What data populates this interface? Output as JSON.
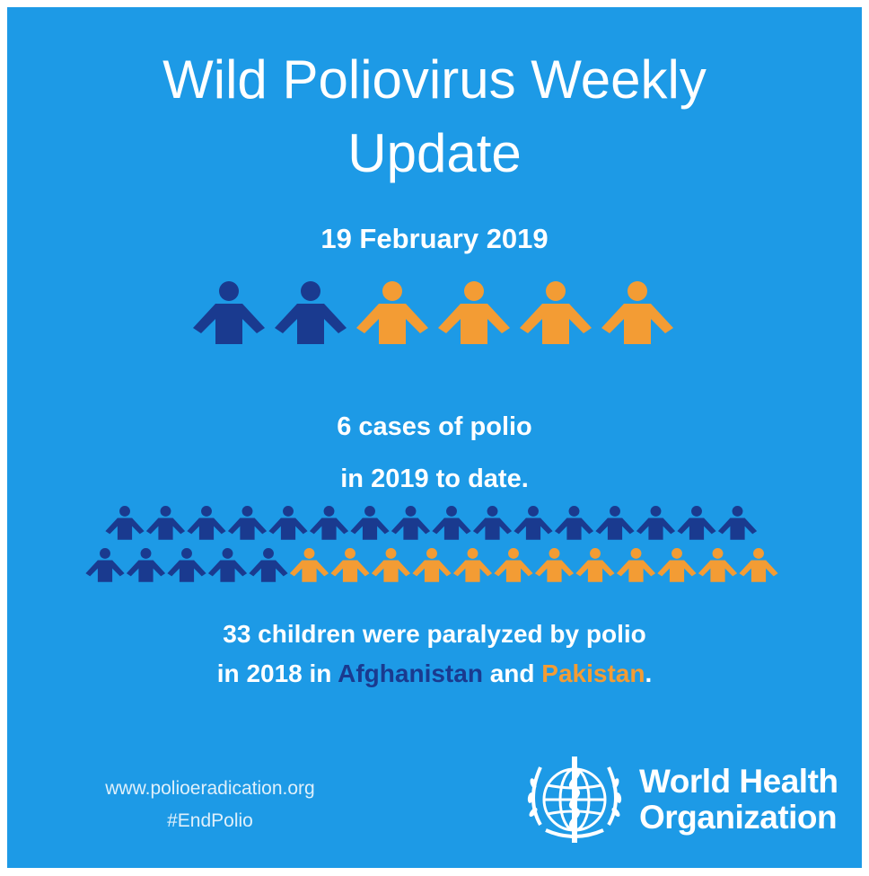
{
  "title": {
    "line1": "Wild Poliovirus Weekly",
    "line2": "Update"
  },
  "date": "19 February 2019",
  "cases": {
    "line1": "6 cases of polio",
    "line2": "in 2019 to date.",
    "afghanistan_count": 2,
    "pakistan_count": 4
  },
  "children_2018": {
    "pre": "33 children were paralyzed by polio",
    "line2_pre": "in 2018 in ",
    "afghanistan": "Afghanistan",
    "and": " and ",
    "pakistan": "Pakistan",
    "end": ".",
    "afghanistan_count": 21,
    "pakistan_count": 12
  },
  "colors": {
    "background": "#1d9ae6",
    "afghanistan": "#1a3a8f",
    "pakistan": "#f39c34"
  },
  "footer": {
    "url": "www.polioeradication.org",
    "hashtag": "#EndPolio"
  },
  "who": {
    "logo_icon": "who-emblem-icon",
    "line1": "World Health",
    "line2": "Organization"
  }
}
